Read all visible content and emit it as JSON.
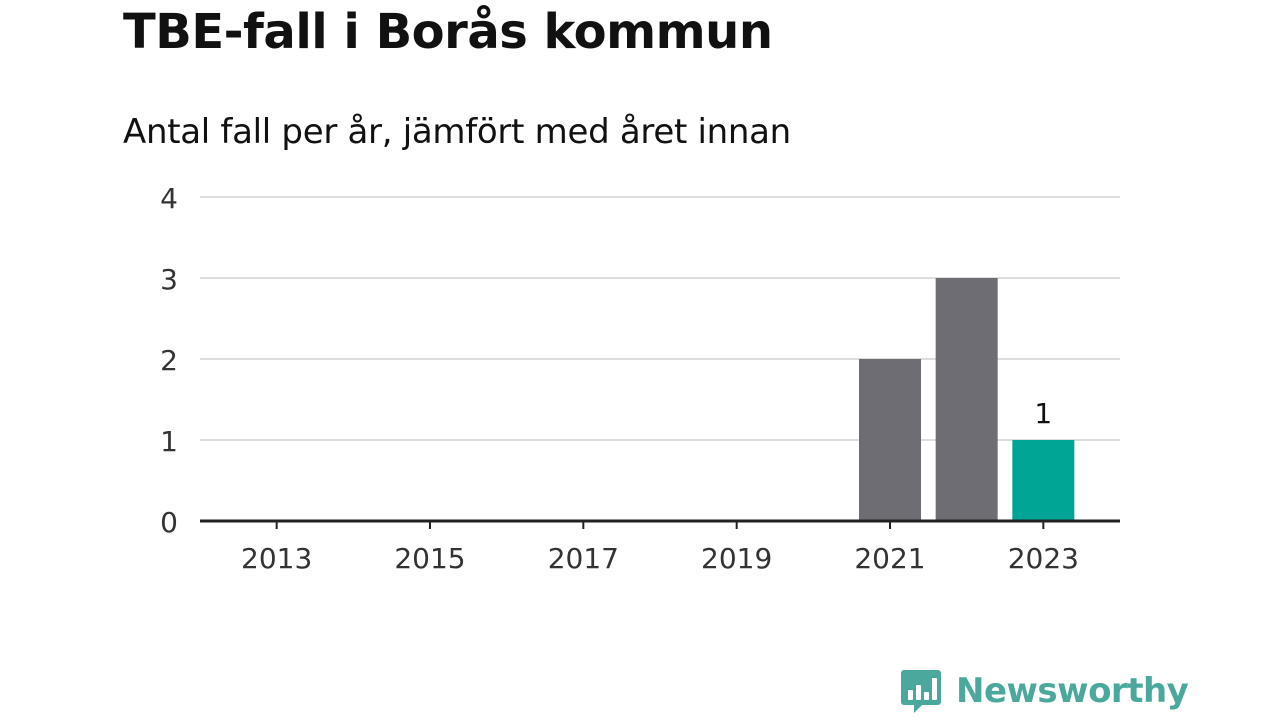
{
  "chart_data": {
    "type": "bar",
    "title": "TBE-fall i Borås kommun",
    "subtitle": "Antal fall per år, jämfört med året innan",
    "xlabel": "",
    "ylabel": "",
    "categories": [
      "2021",
      "2022",
      "2023"
    ],
    "values": [
      2,
      3,
      1
    ],
    "x_range": [
      2012,
      2024
    ],
    "x_ticks": [
      "2013",
      "2015",
      "2017",
      "2019",
      "2021",
      "2023"
    ],
    "y_ticks": [
      "0",
      "1",
      "2",
      "3",
      "4"
    ],
    "ylim": [
      0,
      4
    ],
    "grid": true,
    "highlight_index": 2,
    "data_labels": [
      null,
      null,
      "1"
    ],
    "colors": {
      "bar": "#6e6d73",
      "highlight": "#00a596",
      "grid": "#dddddd",
      "axis": "#222222",
      "tick_text": "#333333"
    }
  },
  "brand": {
    "name": "Newsworthy",
    "icon": "newsworthy-logo-icon",
    "color": "#4aa89c"
  }
}
